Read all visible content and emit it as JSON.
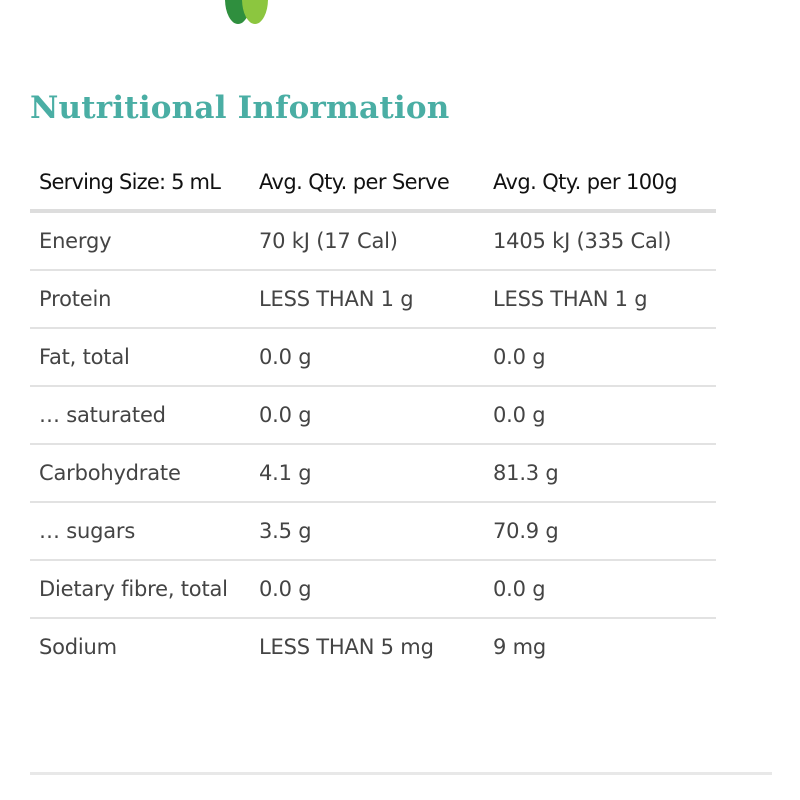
{
  "page": {
    "title": "Nutritional Information",
    "title_color": "#4aaea4"
  },
  "table": {
    "headers": [
      "Serving Size: 5 mL",
      "Avg. Qty. per Serve",
      "Avg. Qty. per 100g"
    ],
    "rows": [
      [
        "Energy",
        "70 kJ (17 Cal)",
        "1405 kJ (335 Cal)"
      ],
      [
        "Protein",
        "LESS THAN 1 g",
        "LESS THAN 1 g"
      ],
      [
        "Fat, total",
        "0.0 g",
        "0.0 g"
      ],
      [
        "… saturated",
        "0.0 g",
        "0.0 g"
      ],
      [
        "Carbohydrate",
        "4.1 g",
        "81.3 g"
      ],
      [
        "… sugars",
        "3.5 g",
        "70.9 g"
      ],
      [
        "Dietary fibre, total",
        "0.0 g",
        "0.0 g"
      ],
      [
        "Sodium",
        "LESS THAN 5 mg",
        "9 mg"
      ]
    ]
  },
  "colors": {
    "logo_dark_green": "#2f8f3e",
    "logo_light_green": "#8cc63f",
    "divider": "#dddddd"
  }
}
